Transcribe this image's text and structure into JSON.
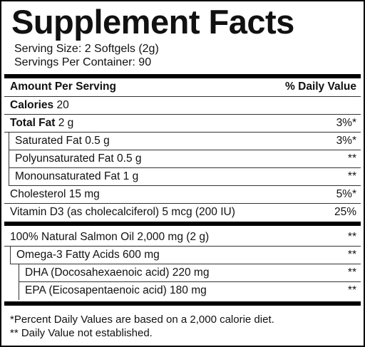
{
  "title": "Supplement Facts",
  "serving_size": "Serving Size: 2 Softgels (2g)",
  "servings_per_container": "Servings Per Container: 90",
  "header": {
    "amount": "Amount Per Serving",
    "daily_value": "% Daily Value"
  },
  "rows": [
    {
      "label": "Calories",
      "amount": "20"
    },
    {
      "label": "Total Fat",
      "amount": "2 g",
      "daily_value": "3%*"
    },
    {
      "label": "Saturated Fat 0.5 g",
      "daily_value": "3%*"
    },
    {
      "label": "Polyunsaturated Fat 0.5 g",
      "daily_value": "**"
    },
    {
      "label": "Monounsaturated Fat 1 g",
      "daily_value": "**"
    },
    {
      "label": "Cholesterol 15 mg",
      "daily_value": "5%*"
    },
    {
      "label": "Vitamin D3 (as cholecalciferol) 5 mcg (200 IU)",
      "daily_value": "25%"
    }
  ],
  "ingredients": [
    {
      "label": "100% Natural Salmon Oil 2,000 mg (2 g)",
      "daily_value": "**"
    },
    {
      "label": "Omega-3 Fatty Acids 600 mg",
      "daily_value": "**"
    },
    {
      "label": "DHA (Docosahexaenoic acid) 220 mg",
      "daily_value": "**"
    },
    {
      "label": "EPA (Eicosapentaenoic acid) 180 mg",
      "daily_value": "**"
    }
  ],
  "footnotes": [
    "*Percent Daily Values are based on a 2,000 calorie diet.",
    "** Daily Value not established."
  ]
}
